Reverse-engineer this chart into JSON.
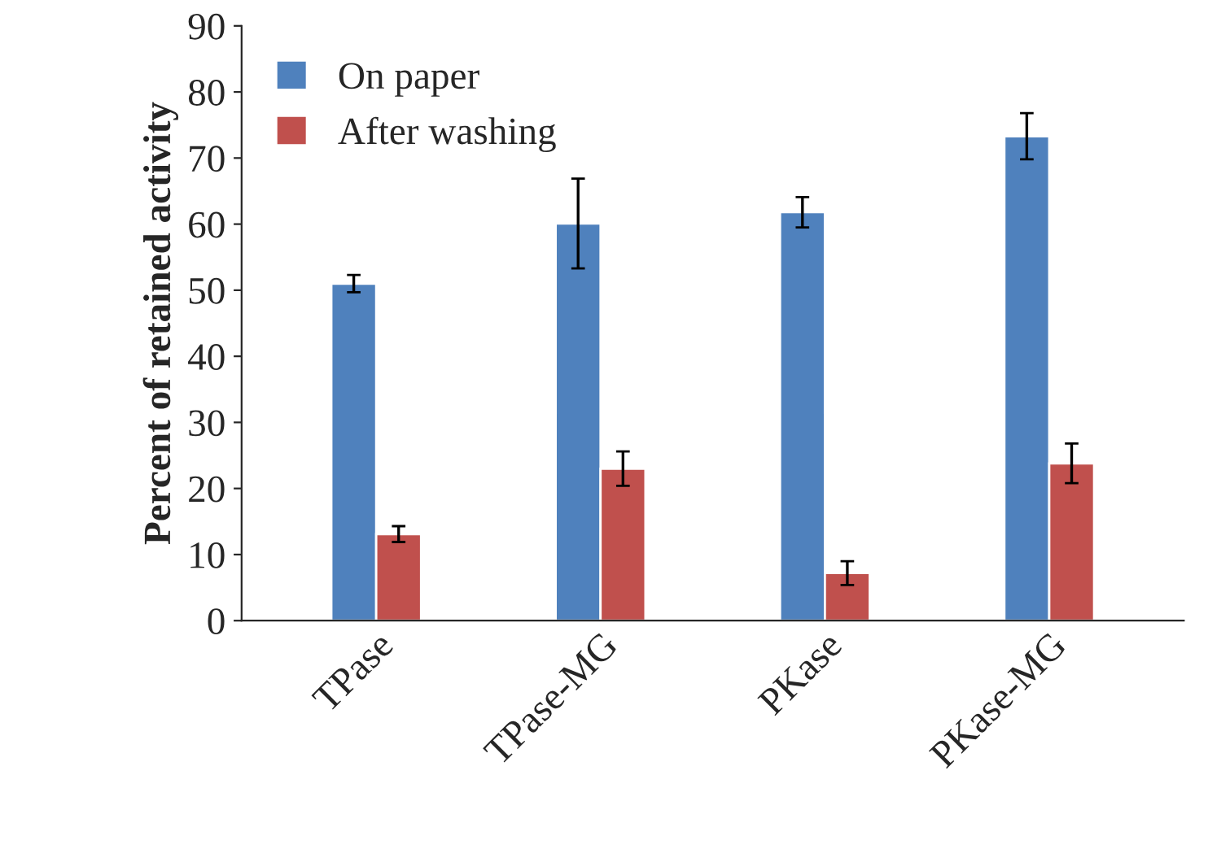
{
  "chart_data": {
    "type": "bar",
    "ylabel": "Percent of retained activity",
    "categories": [
      "TPase",
      "TPase-MG",
      "PKase",
      "PKase-MG"
    ],
    "series": [
      {
        "name": "On paper",
        "color": "#4f81bd",
        "values": [
          51.0,
          60.1,
          61.8,
          73.3
        ],
        "errors": [
          1.3,
          6.8,
          2.3,
          3.5
        ]
      },
      {
        "name": "After washing",
        "color": "#c0504d",
        "values": [
          13.1,
          23.0,
          7.2,
          23.8
        ],
        "errors": [
          1.2,
          2.6,
          1.8,
          3.0
        ]
      }
    ],
    "ylim": [
      0,
      90
    ],
    "yticks": [
      0,
      10,
      20,
      30,
      40,
      50,
      60,
      70,
      80,
      90
    ],
    "grid": false,
    "legend": "top left"
  }
}
